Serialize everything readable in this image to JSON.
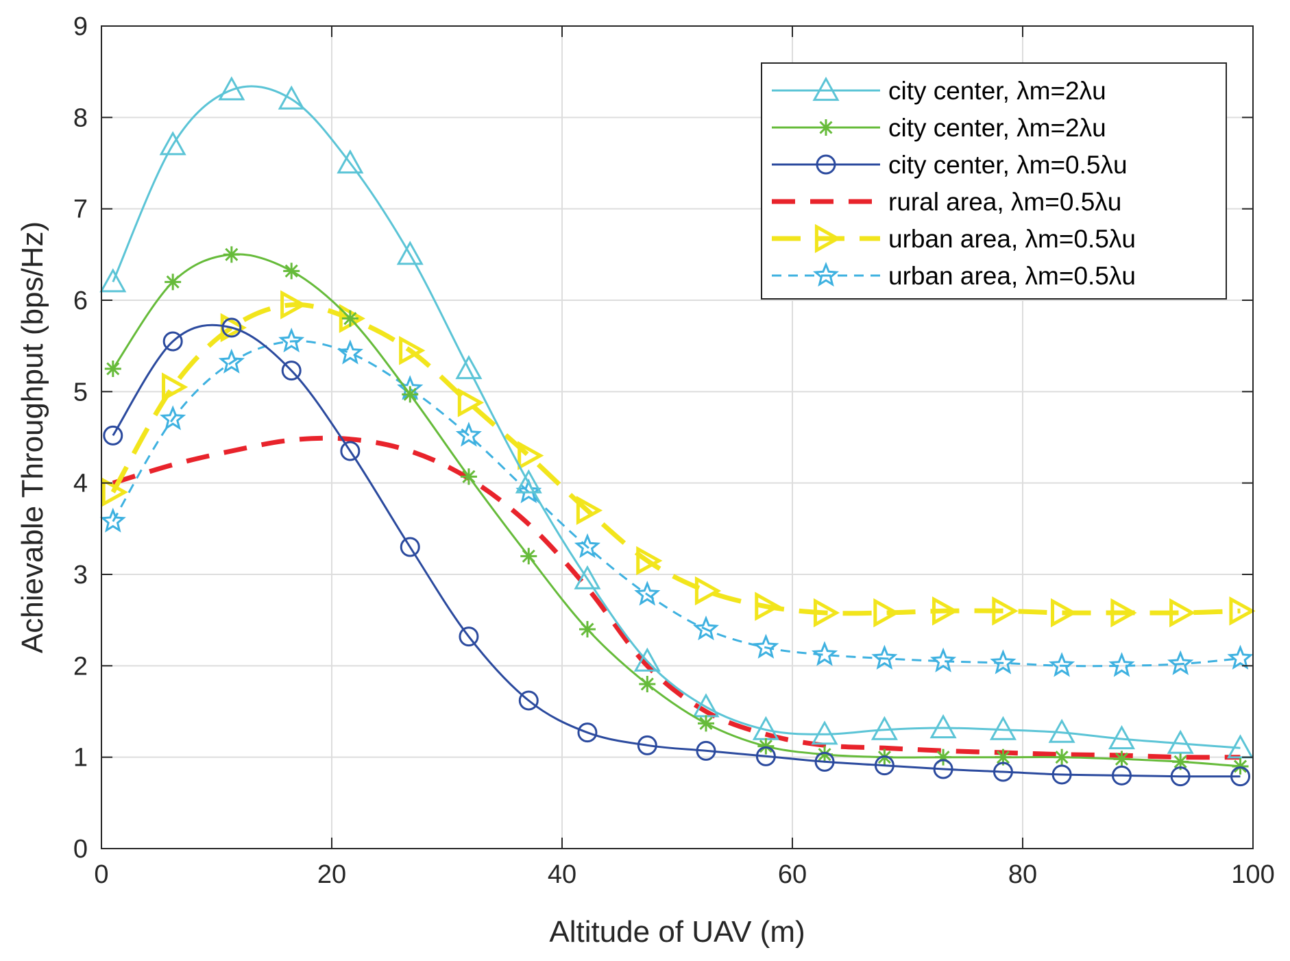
{
  "chart_data": {
    "type": "line",
    "title": "",
    "xlabel": "Altitude of UAV (m)",
    "ylabel": "Achievable Throughput (bps/Hz)",
    "xlim": [
      0,
      100
    ],
    "ylim": [
      0,
      9
    ],
    "xticks": [
      0,
      20,
      40,
      60,
      80,
      100
    ],
    "xtick_labels": [
      "0",
      "20",
      "40",
      "60",
      "80",
      "100"
    ],
    "yticks": [
      0,
      1,
      2,
      3,
      4,
      5,
      6,
      7,
      8,
      9
    ],
    "ytick_labels": [
      "0",
      "1",
      "2",
      "3",
      "4",
      "5",
      "6",
      "7",
      "8",
      "9"
    ],
    "grid": true,
    "legend_position": "top-right",
    "x": [
      1,
      6.2,
      11.3,
      16.5,
      21.6,
      26.8,
      31.9,
      37.1,
      42.2,
      47.4,
      52.5,
      57.7,
      62.8,
      68,
      73.1,
      78.3,
      83.4,
      88.6,
      93.7,
      98.9
    ],
    "series": [
      {
        "name": "city center, λm=2λu",
        "color": "#5bc4d6",
        "line": "solid",
        "marker": "triangle-up",
        "values": [
          6.2,
          7.7,
          8.3,
          8.2,
          7.5,
          6.5,
          5.25,
          4.0,
          2.95,
          2.05,
          1.55,
          1.3,
          1.25,
          1.3,
          1.32,
          1.3,
          1.27,
          1.2,
          1.15,
          1.1
        ]
      },
      {
        "name": "city center, λm=2λu",
        "color": "#66bb3a",
        "line": "solid",
        "marker": "asterisk",
        "values": [
          5.25,
          6.2,
          6.5,
          6.32,
          5.8,
          4.97,
          4.07,
          3.2,
          2.4,
          1.8,
          1.37,
          1.12,
          1.03,
          1.0,
          1.0,
          1.0,
          1.0,
          0.98,
          0.95,
          0.9
        ]
      },
      {
        "name": "city center, λm=0.5λu",
        "color": "#2b4a9e",
        "line": "solid",
        "marker": "circle",
        "values": [
          4.52,
          5.55,
          5.7,
          5.23,
          4.35,
          3.3,
          2.32,
          1.62,
          1.27,
          1.13,
          1.07,
          1.01,
          0.95,
          0.91,
          0.87,
          0.84,
          0.81,
          0.8,
          0.79,
          0.79
        ]
      },
      {
        "name": "rural area, λm=0.5λu",
        "color": "#e8232b",
        "line": "dashed",
        "marker": "none",
        "values": [
          4.0,
          4.2,
          4.35,
          4.47,
          4.48,
          4.35,
          4.05,
          3.55,
          2.85,
          2.0,
          1.5,
          1.25,
          1.13,
          1.1,
          1.07,
          1.05,
          1.03,
          1.02,
          1.0,
          1.0
        ]
      },
      {
        "name": "urban area, λm=0.5λu",
        "color": "#f2e51c",
        "line": "dashed",
        "marker": "triangle-right",
        "values": [
          3.9,
          5.05,
          5.7,
          5.95,
          5.8,
          5.45,
          4.88,
          4.3,
          3.7,
          3.15,
          2.82,
          2.65,
          2.58,
          2.58,
          2.6,
          2.6,
          2.58,
          2.58,
          2.58,
          2.6
        ]
      },
      {
        "name": "urban area, λm=0.5λu",
        "color": "#3eb1e0",
        "line": "dashed",
        "marker": "star",
        "values": [
          3.58,
          4.7,
          5.32,
          5.55,
          5.42,
          5.03,
          4.52,
          3.9,
          3.3,
          2.78,
          2.4,
          2.2,
          2.12,
          2.08,
          2.05,
          2.03,
          2.0,
          2.0,
          2.02,
          2.08
        ]
      }
    ]
  }
}
